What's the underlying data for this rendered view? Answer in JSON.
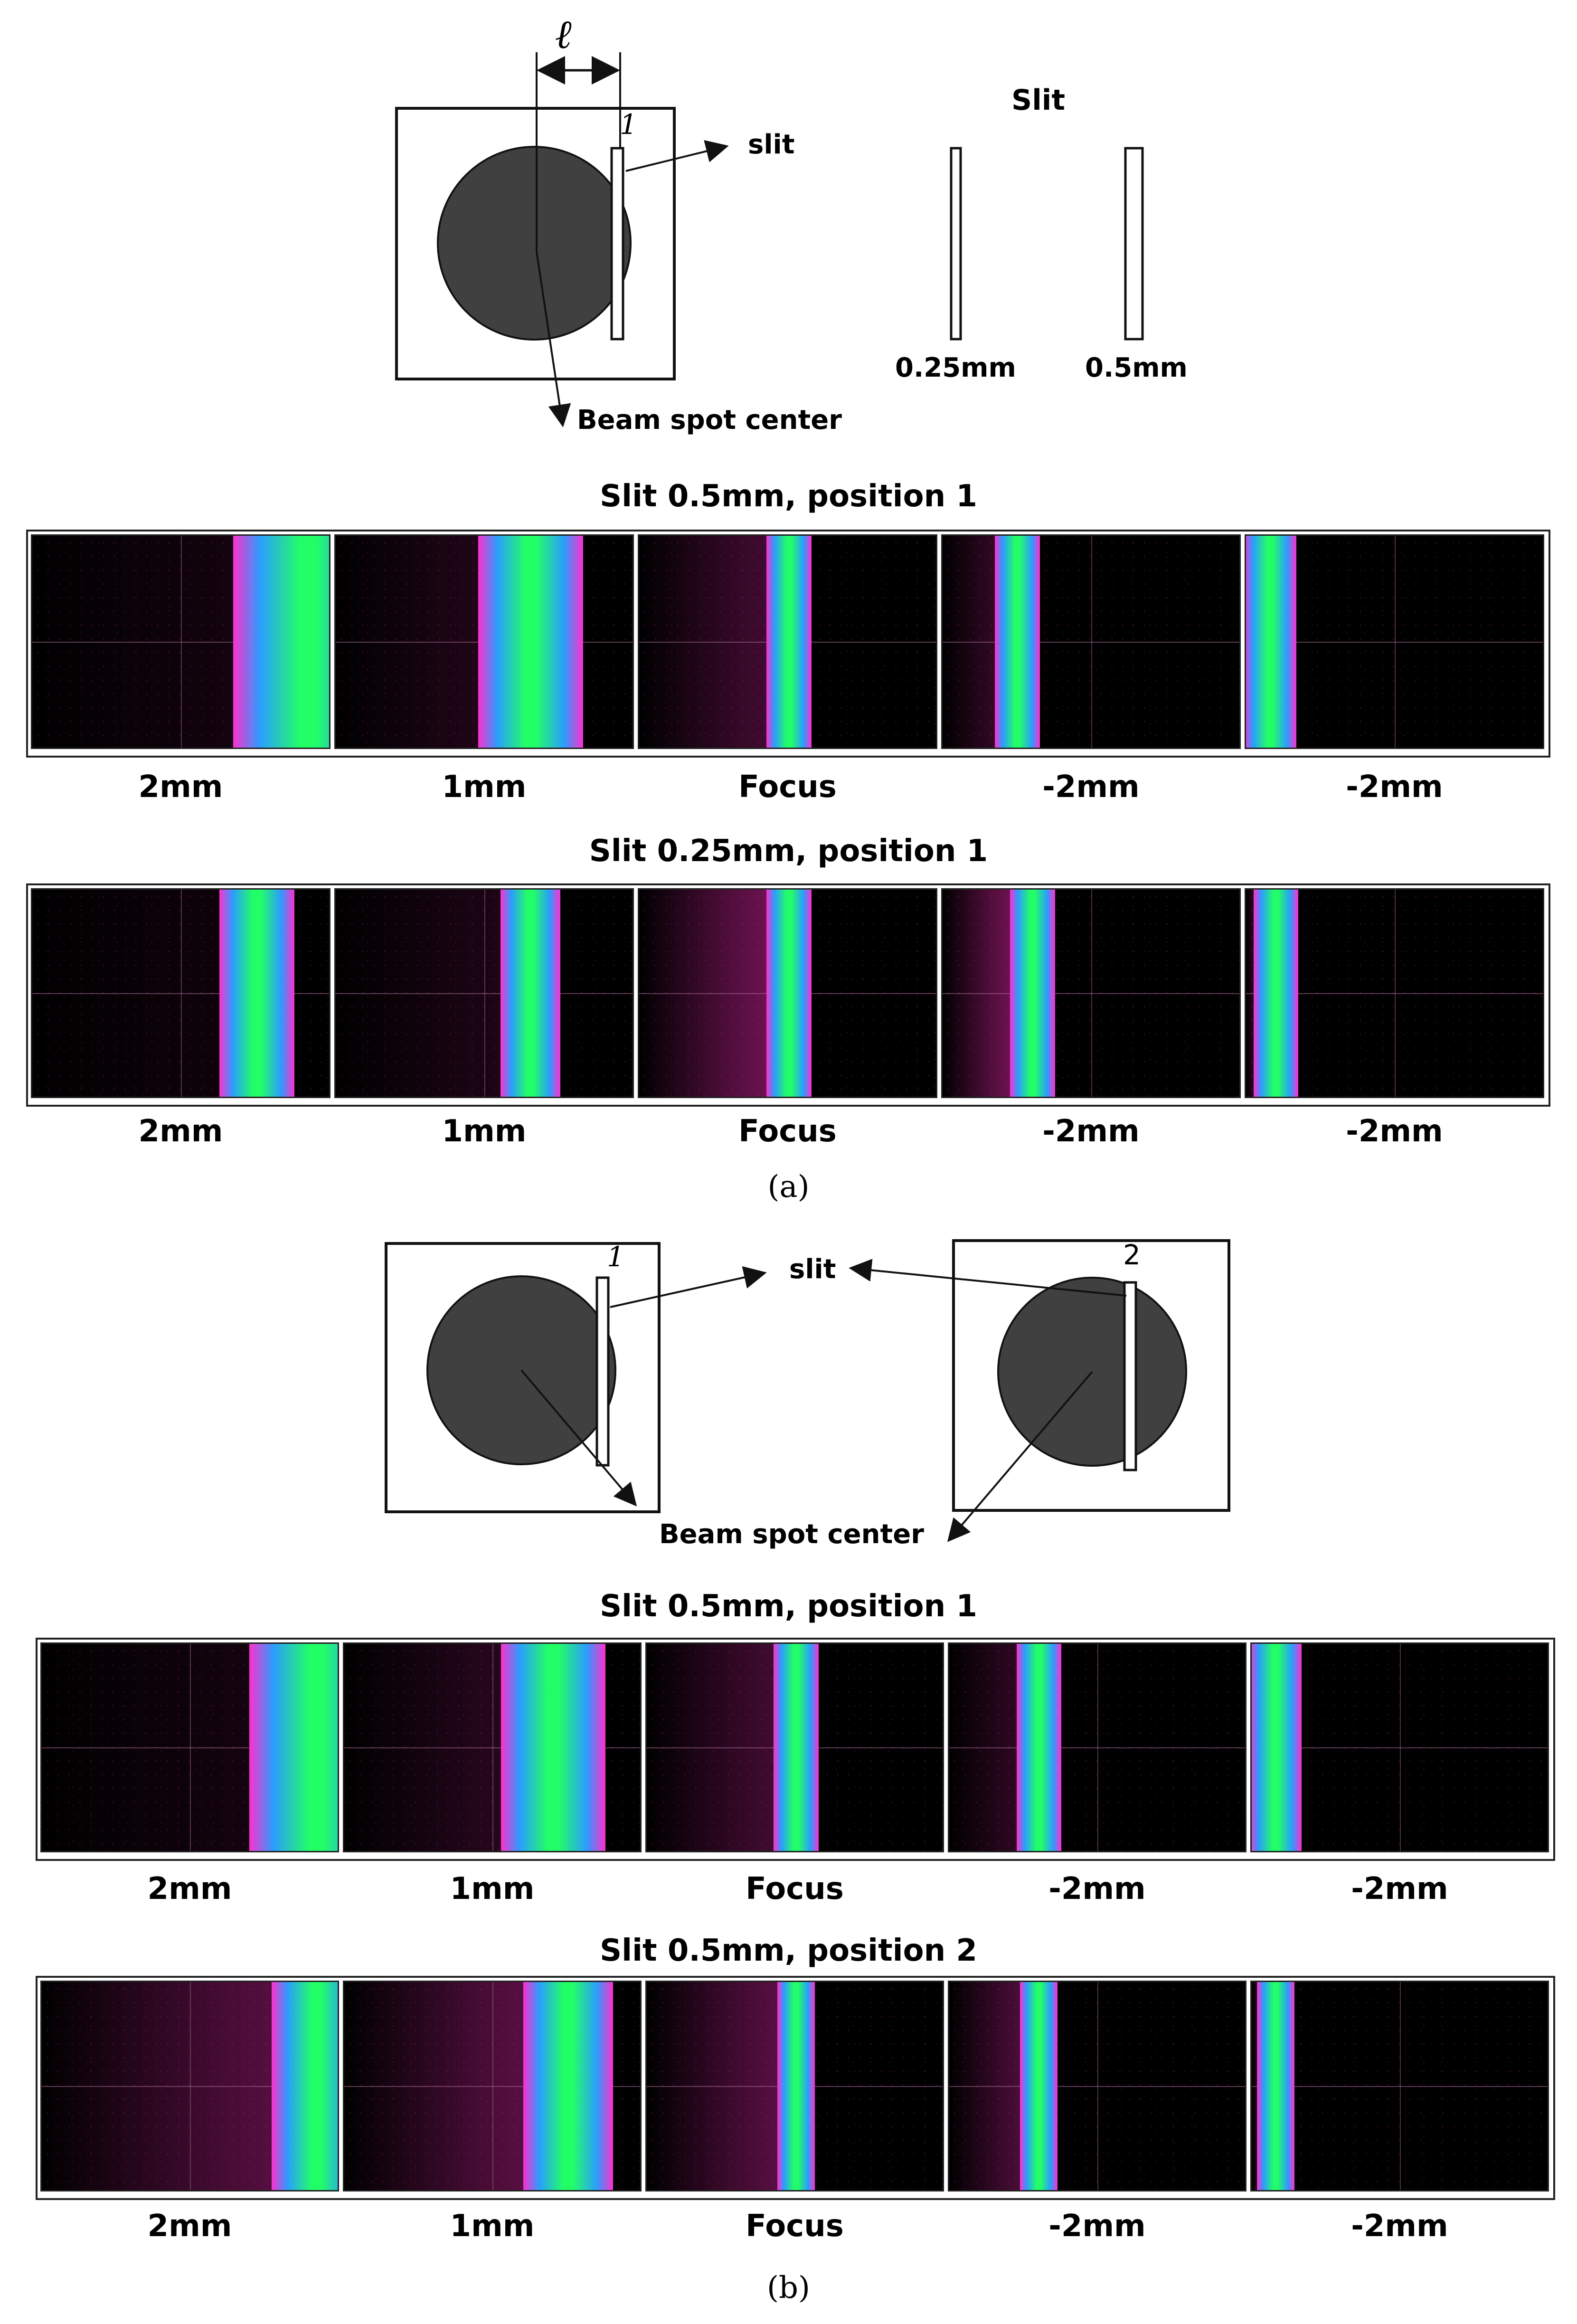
{
  "diagram_a": {
    "length_symbol": "ℓ",
    "slit_number": "1",
    "slit_label": "slit",
    "beam_center_label": "Beam spot center",
    "slit_widths_title": "Slit",
    "slit_width_1": "0.25mm",
    "slit_width_2": "0.5mm"
  },
  "diagram_b": {
    "slit_number_1": "1",
    "slit_number_2": "2",
    "slit_label": "slit",
    "beam_center_label": "Beam spot center"
  },
  "sections": [
    {
      "title": "Slit 0.5mm, position 1",
      "panels": [
        {
          "caption": "2mm",
          "beam_pos": 0.19,
          "beam_width": 0.1,
          "glow": 0.15
        },
        {
          "caption": "1mm",
          "beam_pos": 0.33,
          "beam_width": 0.07,
          "glow": 0.25
        },
        {
          "caption": "Focus",
          "beam_pos": 0.5,
          "beam_width": 0.03,
          "glow": 0.45
        },
        {
          "caption": "-2mm",
          "beam_pos": 0.65,
          "beam_width": 0.03,
          "glow": 0.4
        },
        {
          "caption": "-2mm",
          "beam_pos": 0.81,
          "beam_width": 0.035,
          "glow": 0.7
        }
      ]
    },
    {
      "title": "Slit 0.25mm, position 1",
      "panels": [
        {
          "caption": "2mm",
          "beam_pos": 0.15,
          "beam_width": 0.05,
          "glow": 0.1
        },
        {
          "caption": "1mm",
          "beam_pos": 0.33,
          "beam_width": 0.04,
          "glow": 0.2
        },
        {
          "caption": "Focus",
          "beam_pos": 0.5,
          "beam_width": 0.03,
          "glow": 0.75
        },
        {
          "caption": "-2mm",
          "beam_pos": 0.66,
          "beam_width": 0.03,
          "glow": 0.85
        },
        {
          "caption": "-2mm",
          "beam_pos": 0.82,
          "beam_width": 0.03,
          "glow": 0.85
        }
      ]
    },
    {
      "title": "Slit 0.5mm, position 1",
      "panels": [
        {
          "caption": "2mm",
          "beam_pos": 0.2,
          "beam_width": 0.09,
          "glow": 0.15
        },
        {
          "caption": "1mm",
          "beam_pos": 0.34,
          "beam_width": 0.07,
          "glow": 0.3
        },
        {
          "caption": "Focus",
          "beam_pos": 0.5,
          "beam_width": 0.03,
          "glow": 0.45
        },
        {
          "caption": "-2mm",
          "beam_pos": 0.66,
          "beam_width": 0.03,
          "glow": 0.35
        },
        {
          "caption": "-2mm",
          "beam_pos": 0.8,
          "beam_width": 0.035,
          "glow": 0.65
        }
      ]
    },
    {
      "title": "Slit 0.5mm, position 2",
      "panels": [
        {
          "caption": "2mm",
          "beam_pos": 0.2,
          "beam_width": 0.06,
          "glow": 0.6
        },
        {
          "caption": "1mm",
          "beam_pos": 0.35,
          "beam_width": 0.06,
          "glow": 0.65
        },
        {
          "caption": "Focus",
          "beam_pos": 0.5,
          "beam_width": 0.025,
          "glow": 0.6
        },
        {
          "caption": "-2mm",
          "beam_pos": 0.66,
          "beam_width": 0.025,
          "glow": 0.55
        },
        {
          "caption": "-2mm",
          "beam_pos": 0.81,
          "beam_width": 0.025,
          "glow": 0.6
        }
      ]
    }
  ],
  "figure_labels": {
    "a": "(a)",
    "b": "(b)"
  },
  "colors": {
    "beam_spot": "#404040",
    "beam_core": "#22ff66",
    "beam_mid": "#2a9dff",
    "beam_edge": "#ff2fcf",
    "noise": "#c0208f"
  }
}
